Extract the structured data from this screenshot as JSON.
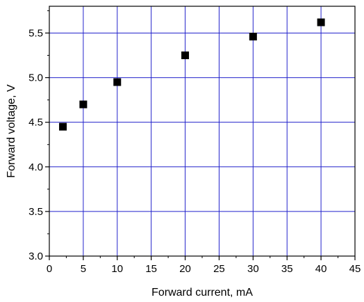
{
  "chart_data": {
    "type": "scatter",
    "title": "",
    "xlabel": "Forward current, mA",
    "ylabel": "Forward voltage, V",
    "xlim": [
      0,
      45
    ],
    "ylim": [
      3.0,
      5.8
    ],
    "x_ticks": [
      0,
      5,
      10,
      15,
      20,
      25,
      30,
      35,
      40,
      45
    ],
    "x_tick_labels": [
      "0",
      "5",
      "10",
      "15",
      "20",
      "25",
      "30",
      "35",
      "40",
      "45"
    ],
    "y_ticks": [
      3.0,
      3.5,
      4.0,
      4.5,
      5.0,
      5.5
    ],
    "y_tick_labels": [
      "3.0",
      "3.5",
      "4.0",
      "4.5",
      "5.0",
      "5.5"
    ],
    "grid": true,
    "legend": "none",
    "colors": {
      "grid": "#2222cc",
      "marker": "#000000",
      "axis": "#000000",
      "background": "#ffffff"
    },
    "series": [
      {
        "marker": "square",
        "x": [
          2,
          5,
          10,
          20,
          30,
          40
        ],
        "y": [
          4.45,
          4.7,
          4.95,
          5.25,
          5.46,
          5.62
        ]
      }
    ]
  }
}
